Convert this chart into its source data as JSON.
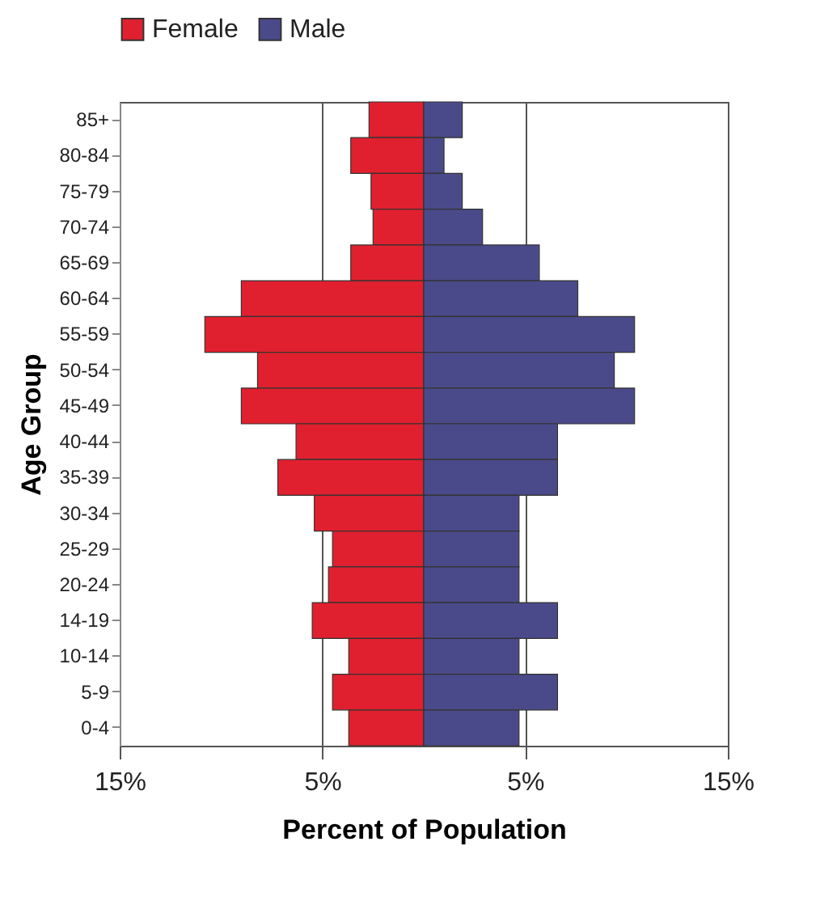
{
  "chart_data": {
    "type": "bar",
    "orientation": "horizontal",
    "xlabel": "Percent of Population",
    "ylabel": "Age Group",
    "categories": [
      "85+",
      "80-84",
      "75-79",
      "70-74",
      "65-69",
      "60-64",
      "55-59",
      "50-54",
      "45-49",
      "40-44",
      "35-39",
      "30-34",
      "25-29",
      "20-24",
      "14-19",
      "10-14",
      "5-9",
      "0-4"
    ],
    "series": [
      {
        "name": "Female",
        "color": "#e0202e",
        "values": [
          -2.7,
          -3.6,
          -2.6,
          -2.5,
          -3.6,
          -9.0,
          -10.8,
          -8.2,
          -9.0,
          -6.3,
          -7.2,
          -5.4,
          -4.5,
          -4.7,
          -5.5,
          -3.7,
          -4.5,
          -3.7
        ]
      },
      {
        "name": "Male",
        "color": "#4a4a8a",
        "values": [
          1.9,
          1.0,
          1.9,
          2.9,
          5.7,
          7.6,
          10.4,
          9.4,
          10.4,
          6.6,
          6.6,
          4.7,
          4.7,
          4.7,
          6.6,
          4.7,
          6.6,
          4.7
        ]
      }
    ],
    "xlim": [
      -15,
      15
    ],
    "xticks": [
      {
        "value": -15,
        "label": "15%"
      },
      {
        "value": -5,
        "label": "5%"
      },
      {
        "value": 5,
        "label": "5%"
      },
      {
        "value": 15,
        "label": "15%"
      }
    ],
    "grid": "x",
    "legend": "top",
    "stacked": true
  }
}
